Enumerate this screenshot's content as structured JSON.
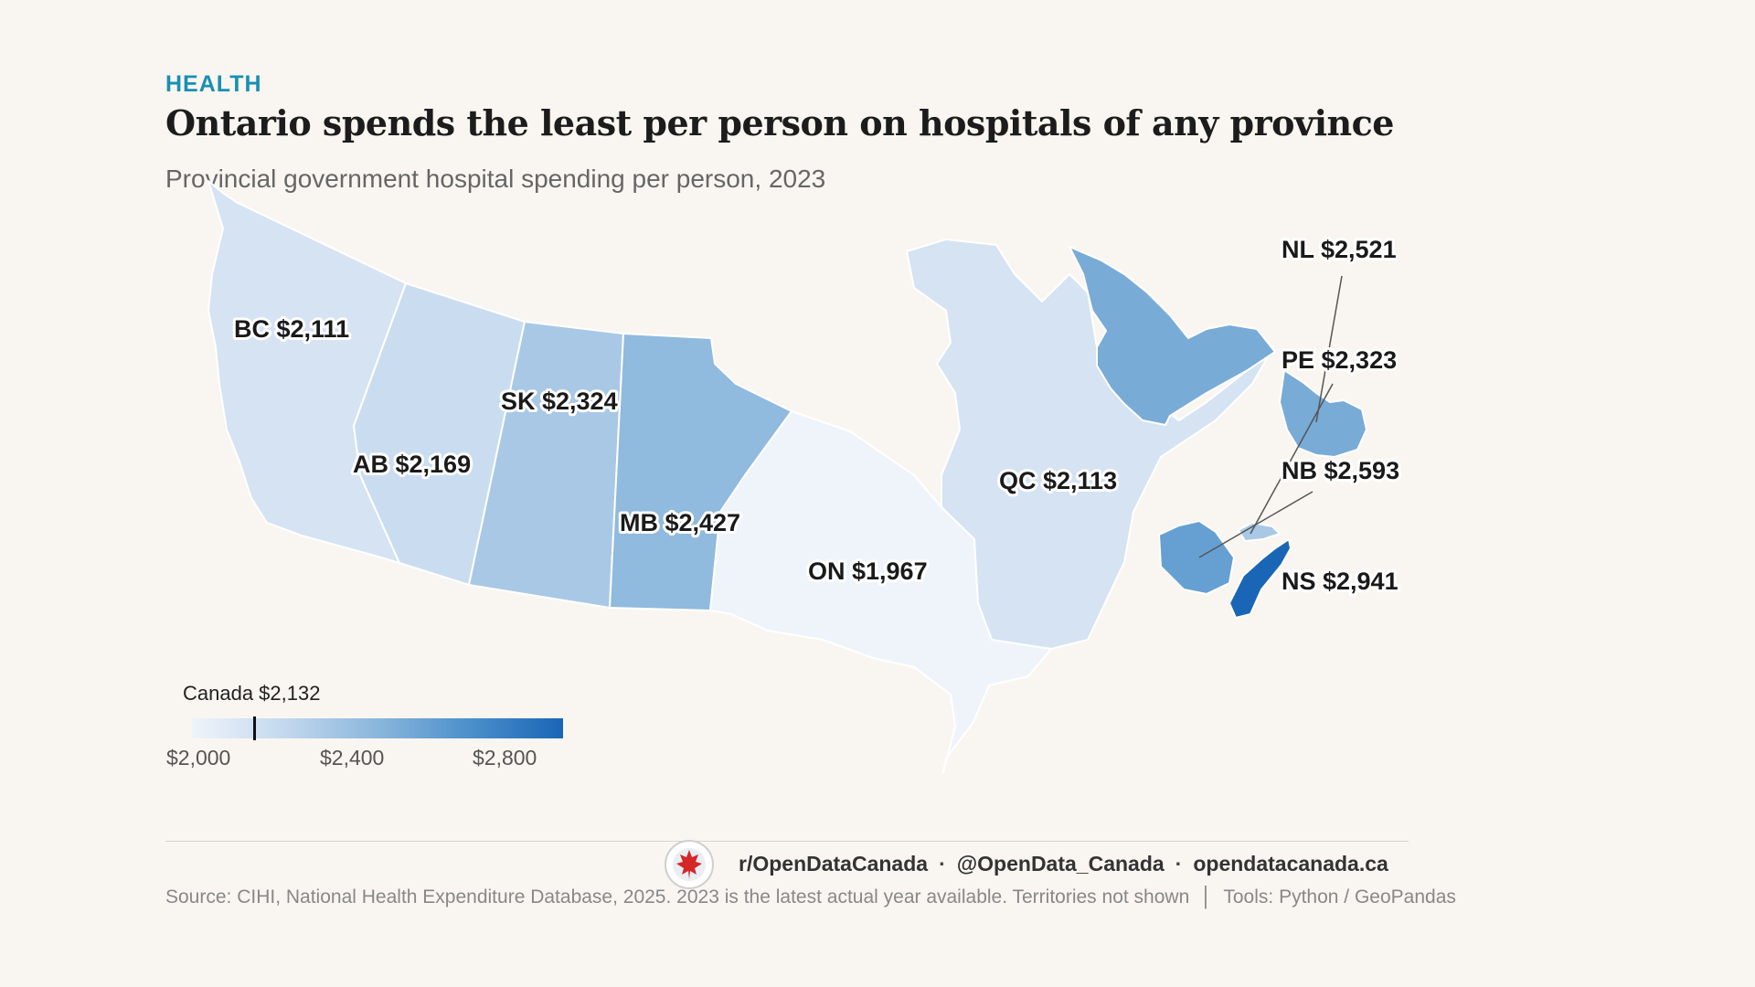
{
  "header": {
    "kicker": "HEALTH",
    "title": "Ontario spends the least per person on hospitals of any province",
    "subtitle": "Provincial government hospital spending per person, 2023"
  },
  "colors": {
    "accent": "#1a8fb3",
    "scale": [
      "#eff4fb",
      "#1966b6"
    ]
  },
  "chart_data": {
    "type": "choropleth",
    "unit": "$ per person",
    "provinces": [
      {
        "code": "BC",
        "value": 2111,
        "label": "BC  $2,111"
      },
      {
        "code": "AB",
        "value": 2169,
        "label": "AB  $2,169"
      },
      {
        "code": "SK",
        "value": 2324,
        "label": "SK  $2,324"
      },
      {
        "code": "MB",
        "value": 2427,
        "label": "MB  $2,427"
      },
      {
        "code": "ON",
        "value": 1967,
        "label": "ON  $1,967"
      },
      {
        "code": "QC",
        "value": 2113,
        "label": "QC  $2,113"
      },
      {
        "code": "NL",
        "value": 2521,
        "label": "NL  $2,521"
      },
      {
        "code": "PE",
        "value": 2323,
        "label": "PE  $2,323"
      },
      {
        "code": "NB",
        "value": 2593,
        "label": "NB  $2,593"
      },
      {
        "code": "NS",
        "value": 2941,
        "label": "NS  $2,941"
      }
    ],
    "legend": {
      "title": "Canada $2,132",
      "reference_value": 2132,
      "min": 1967,
      "max": 2941,
      "ticks": [
        "$2,000",
        "$2,400",
        "$2,800"
      ]
    }
  },
  "footer": {
    "handles": [
      "r/OpenDataCanada",
      "@OpenData_Canada",
      "opendatacanada.ca"
    ],
    "separator": "·",
    "source": "Source: CIHI, National Health Expenditure Database, 2025. 2023 is the latest actual year available. Territories not shown",
    "pipe": "│",
    "tools": "Tools: Python / GeoPandas"
  }
}
